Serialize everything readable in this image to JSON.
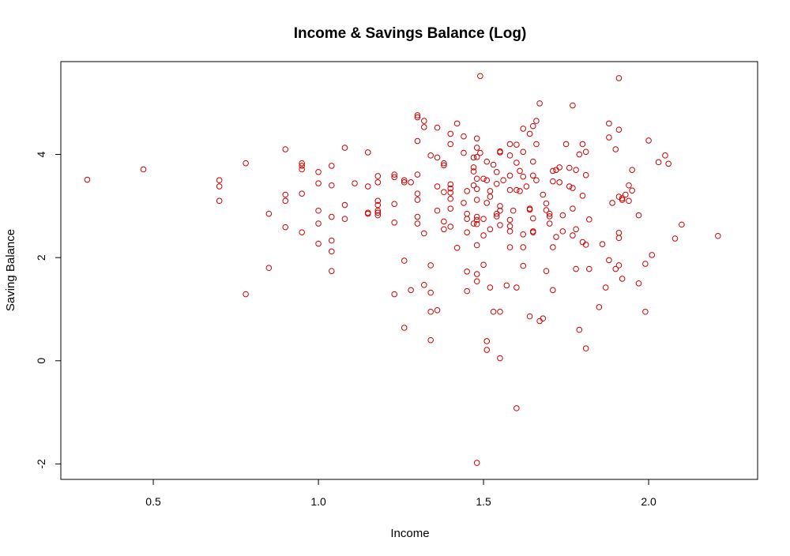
{
  "chart_data": {
    "type": "scatter",
    "title": "Income & Savings Balance (Log)",
    "xlabel": "Income",
    "ylabel": "Saving Balance",
    "xlim": [
      0.22,
      2.33
    ],
    "ylim": [
      -2.3,
      5.8
    ],
    "xticks": [
      0.5,
      1.0,
      1.5,
      2.0
    ],
    "xtick_labels": [
      "0.5",
      "1.0",
      "1.5",
      "2.0"
    ],
    "yticks": [
      -2,
      0,
      2,
      4
    ],
    "ytick_labels": [
      "-2",
      "0",
      "2",
      "4"
    ],
    "grid": false,
    "legend": "none",
    "marker": "open-circle",
    "color": "#cc0000",
    "points": [
      [
        0.3,
        3.51
      ],
      [
        0.47,
        3.71
      ],
      [
        0.7,
        3.5
      ],
      [
        0.7,
        3.38
      ],
      [
        0.7,
        3.1
      ],
      [
        0.78,
        3.83
      ],
      [
        0.78,
        1.29
      ],
      [
        0.85,
        2.85
      ],
      [
        0.85,
        1.8
      ],
      [
        0.9,
        4.1
      ],
      [
        0.9,
        3.22
      ],
      [
        0.9,
        3.1
      ],
      [
        0.9,
        2.59
      ],
      [
        0.95,
        3.83
      ],
      [
        0.95,
        3.78
      ],
      [
        0.95,
        3.71
      ],
      [
        0.95,
        3.24
      ],
      [
        0.95,
        2.49
      ],
      [
        1.0,
        3.66
      ],
      [
        1.0,
        3.44
      ],
      [
        1.0,
        2.91
      ],
      [
        1.0,
        2.66
      ],
      [
        1.0,
        2.27
      ],
      [
        1.04,
        3.78
      ],
      [
        1.04,
        3.4
      ],
      [
        1.04,
        2.79
      ],
      [
        1.04,
        2.33
      ],
      [
        1.04,
        2.12
      ],
      [
        1.04,
        1.74
      ],
      [
        1.08,
        4.13
      ],
      [
        1.08,
        3.02
      ],
      [
        1.08,
        2.75
      ],
      [
        1.11,
        3.44
      ],
      [
        1.15,
        4.04
      ],
      [
        1.15,
        3.38
      ],
      [
        1.15,
        2.87
      ],
      [
        1.15,
        2.85
      ],
      [
        1.18,
        3.58
      ],
      [
        1.18,
        3.46
      ],
      [
        1.18,
        3.1
      ],
      [
        1.18,
        3.02
      ],
      [
        1.18,
        2.91
      ],
      [
        1.18,
        2.87
      ],
      [
        1.18,
        2.82
      ],
      [
        1.23,
        3.61
      ],
      [
        1.23,
        3.56
      ],
      [
        1.23,
        3.04
      ],
      [
        1.23,
        2.68
      ],
      [
        1.23,
        1.29
      ],
      [
        1.26,
        3.5
      ],
      [
        1.26,
        3.46
      ],
      [
        1.26,
        1.94
      ],
      [
        1.26,
        0.64
      ],
      [
        1.28,
        3.46
      ],
      [
        1.28,
        1.37
      ],
      [
        1.3,
        4.76
      ],
      [
        1.3,
        4.72
      ],
      [
        1.3,
        4.26
      ],
      [
        1.3,
        3.61
      ],
      [
        1.3,
        3.24
      ],
      [
        1.3,
        3.12
      ],
      [
        1.3,
        2.79
      ],
      [
        1.3,
        2.66
      ],
      [
        1.32,
        4.65
      ],
      [
        1.32,
        4.53
      ],
      [
        1.32,
        2.47
      ],
      [
        1.32,
        1.47
      ],
      [
        1.34,
        3.98
      ],
      [
        1.34,
        1.85
      ],
      [
        1.34,
        1.32
      ],
      [
        1.34,
        0.95
      ],
      [
        1.34,
        0.4
      ],
      [
        1.36,
        4.52
      ],
      [
        1.36,
        3.94
      ],
      [
        1.36,
        3.38
      ],
      [
        1.36,
        2.91
      ],
      [
        1.36,
        0.98
      ],
      [
        1.38,
        3.83
      ],
      [
        1.38,
        3.79
      ],
      [
        1.38,
        3.27
      ],
      [
        1.38,
        2.7
      ],
      [
        1.38,
        2.55
      ],
      [
        1.4,
        4.4
      ],
      [
        1.4,
        4.2
      ],
      [
        1.4,
        3.42
      ],
      [
        1.4,
        3.34
      ],
      [
        1.4,
        3.26
      ],
      [
        1.4,
        3.14
      ],
      [
        1.4,
        2.95
      ],
      [
        1.4,
        2.6
      ],
      [
        1.42,
        4.6
      ],
      [
        1.42,
        2.19
      ],
      [
        1.44,
        4.35
      ],
      [
        1.44,
        4.03
      ],
      [
        1.44,
        3.06
      ],
      [
        1.45,
        3.29
      ],
      [
        1.45,
        2.85
      ],
      [
        1.45,
        2.75
      ],
      [
        1.45,
        2.49
      ],
      [
        1.45,
        1.73
      ],
      [
        1.45,
        1.35
      ],
      [
        1.47,
        3.94
      ],
      [
        1.47,
        3.75
      ],
      [
        1.47,
        3.67
      ],
      [
        1.47,
        3.4
      ],
      [
        1.47,
        2.66
      ],
      [
        1.48,
        4.31
      ],
      [
        1.48,
        4.13
      ],
      [
        1.48,
        3.95
      ],
      [
        1.48,
        3.53
      ],
      [
        1.48,
        3.33
      ],
      [
        1.48,
        3.12
      ],
      [
        1.48,
        2.79
      ],
      [
        1.48,
        2.73
      ],
      [
        1.48,
        2.65
      ],
      [
        1.48,
        2.24
      ],
      [
        1.48,
        1.68
      ],
      [
        1.48,
        1.54
      ],
      [
        1.48,
        -1.98
      ],
      [
        1.49,
        5.52
      ],
      [
        1.49,
        4.03
      ],
      [
        1.5,
        3.53
      ],
      [
        1.5,
        2.75
      ],
      [
        1.5,
        2.43
      ],
      [
        1.5,
        1.86
      ],
      [
        1.51,
        3.86
      ],
      [
        1.51,
        3.5
      ],
      [
        1.51,
        3.06
      ],
      [
        1.51,
        0.38
      ],
      [
        1.51,
        0.21
      ],
      [
        1.52,
        3.29
      ],
      [
        1.52,
        3.18
      ],
      [
        1.52,
        2.55
      ],
      [
        1.52,
        1.42
      ],
      [
        1.53,
        3.8
      ],
      [
        1.53,
        0.95
      ],
      [
        1.54,
        3.66
      ],
      [
        1.54,
        3.43
      ],
      [
        1.54,
        2.85
      ],
      [
        1.54,
        2.8
      ],
      [
        1.55,
        4.06
      ],
      [
        1.55,
        4.04
      ],
      [
        1.55,
        3.0
      ],
      [
        1.55,
        2.91
      ],
      [
        1.55,
        2.63
      ],
      [
        1.55,
        0.95
      ],
      [
        1.55,
        0.05
      ],
      [
        1.56,
        3.5
      ],
      [
        1.57,
        1.46
      ],
      [
        1.58,
        4.2
      ],
      [
        1.58,
        3.98
      ],
      [
        1.58,
        3.59
      ],
      [
        1.58,
        3.31
      ],
      [
        1.58,
        2.73
      ],
      [
        1.58,
        2.61
      ],
      [
        1.58,
        2.51
      ],
      [
        1.58,
        2.2
      ],
      [
        1.59,
        2.91
      ],
      [
        1.6,
        4.19
      ],
      [
        1.6,
        3.84
      ],
      [
        1.6,
        3.31
      ],
      [
        1.6,
        1.42
      ],
      [
        1.6,
        -0.92
      ],
      [
        1.61,
        3.68
      ],
      [
        1.61,
        3.29
      ],
      [
        1.62,
        4.5
      ],
      [
        1.62,
        4.05
      ],
      [
        1.62,
        3.57
      ],
      [
        1.62,
        2.45
      ],
      [
        1.62,
        1.84
      ],
      [
        1.62,
        2.2
      ],
      [
        1.63,
        3.38
      ],
      [
        1.64,
        4.4
      ],
      [
        1.64,
        2.95
      ],
      [
        1.64,
        2.93
      ],
      [
        1.64,
        0.86
      ],
      [
        1.65,
        4.55
      ],
      [
        1.65,
        3.86
      ],
      [
        1.65,
        3.59
      ],
      [
        1.65,
        2.76
      ],
      [
        1.65,
        2.51
      ],
      [
        1.65,
        2.49
      ],
      [
        1.66,
        4.65
      ],
      [
        1.66,
        4.2
      ],
      [
        1.66,
        3.5
      ],
      [
        1.67,
        4.99
      ],
      [
        1.67,
        0.77
      ],
      [
        1.68,
        3.22
      ],
      [
        1.68,
        0.82
      ],
      [
        1.69,
        3.05
      ],
      [
        1.69,
        2.92
      ],
      [
        1.69,
        1.74
      ],
      [
        1.7,
        2.85
      ],
      [
        1.7,
        2.8
      ],
      [
        1.7,
        2.66
      ],
      [
        1.71,
        3.68
      ],
      [
        1.71,
        3.48
      ],
      [
        1.71,
        2.2
      ],
      [
        1.71,
        1.37
      ],
      [
        1.72,
        3.7
      ],
      [
        1.72,
        2.4
      ],
      [
        1.73,
        3.75
      ],
      [
        1.73,
        3.46
      ],
      [
        1.74,
        2.82
      ],
      [
        1.74,
        2.51
      ],
      [
        1.75,
        4.2
      ],
      [
        1.76,
        3.74
      ],
      [
        1.76,
        3.38
      ],
      [
        1.77,
        4.95
      ],
      [
        1.77,
        3.35
      ],
      [
        1.77,
        2.95
      ],
      [
        1.77,
        2.43
      ],
      [
        1.78,
        3.7
      ],
      [
        1.78,
        2.55
      ],
      [
        1.78,
        1.78
      ],
      [
        1.79,
        4.0
      ],
      [
        1.79,
        0.6
      ],
      [
        1.8,
        4.2
      ],
      [
        1.8,
        3.2
      ],
      [
        1.8,
        2.3
      ],
      [
        1.81,
        4.05
      ],
      [
        1.81,
        3.6
      ],
      [
        1.81,
        2.25
      ],
      [
        1.81,
        0.24
      ],
      [
        1.82,
        2.74
      ],
      [
        1.82,
        1.78
      ],
      [
        1.85,
        1.04
      ],
      [
        1.86,
        2.26
      ],
      [
        1.87,
        1.42
      ],
      [
        1.88,
        4.6
      ],
      [
        1.88,
        1.95
      ],
      [
        1.88,
        4.33
      ],
      [
        1.89,
        3.06
      ],
      [
        1.9,
        4.1
      ],
      [
        1.9,
        1.78
      ],
      [
        1.91,
        5.48
      ],
      [
        1.91,
        4.48
      ],
      [
        1.91,
        3.18
      ],
      [
        1.91,
        2.48
      ],
      [
        1.91,
        2.38
      ],
      [
        1.91,
        1.85
      ],
      [
        1.92,
        3.15
      ],
      [
        1.92,
        3.12
      ],
      [
        1.92,
        1.59
      ],
      [
        1.93,
        3.22
      ],
      [
        1.94,
        3.4
      ],
      [
        1.94,
        3.1
      ],
      [
        1.95,
        3.7
      ],
      [
        1.95,
        3.3
      ],
      [
        1.97,
        2.82
      ],
      [
        1.97,
        1.5
      ],
      [
        1.99,
        0.95
      ],
      [
        1.99,
        1.88
      ],
      [
        2.0,
        4.27
      ],
      [
        2.01,
        2.05
      ],
      [
        2.03,
        3.85
      ],
      [
        2.05,
        3.98
      ],
      [
        2.06,
        3.82
      ],
      [
        2.08,
        2.37
      ],
      [
        2.1,
        2.64
      ],
      [
        2.21,
        2.42
      ]
    ]
  }
}
